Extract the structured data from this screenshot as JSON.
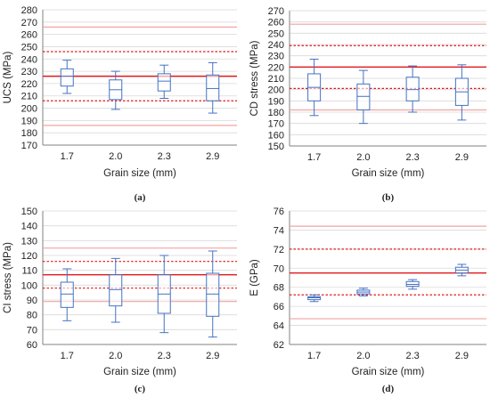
{
  "chart_data": [
    {
      "type": "box",
      "caption": "(a)",
      "ylabel": "UCS (MPa)",
      "xlabel": "Grain size (mm)",
      "ylim": [
        170,
        280
      ],
      "ytick_step": 10,
      "categories": [
        "1.7",
        "2.0",
        "2.3",
        "2.9"
      ],
      "boxes": [
        {
          "min": 212,
          "q1": 218,
          "median": 226,
          "q3": 232,
          "max": 239
        },
        {
          "min": 199,
          "q1": 207,
          "median": 215,
          "q3": 223,
          "max": 230
        },
        {
          "min": 208,
          "q1": 214,
          "median": 222,
          "q3": 228,
          "max": 235
        },
        {
          "min": 196,
          "q1": 206,
          "median": 216,
          "q3": 227,
          "max": 237
        }
      ],
      "reference_lines": {
        "mean": 226,
        "dotted": [
          206,
          246
        ],
        "faint": [
          186,
          266
        ]
      }
    },
    {
      "type": "box",
      "caption": "(b)",
      "ylabel": "CD stress (MPa)",
      "xlabel": "Grain size (mm)",
      "ylim": [
        150,
        270
      ],
      "ytick_step": 10,
      "categories": [
        "1.7",
        "2.0",
        "2.3",
        "2.9"
      ],
      "boxes": [
        {
          "min": 177,
          "q1": 190,
          "median": 202,
          "q3": 214,
          "max": 227
        },
        {
          "min": 170,
          "q1": 182,
          "median": 194,
          "q3": 205,
          "max": 217
        },
        {
          "min": 180,
          "q1": 190,
          "median": 200,
          "q3": 211,
          "max": 221
        },
        {
          "min": 173,
          "q1": 186,
          "median": 198,
          "q3": 210,
          "max": 222
        }
      ],
      "reference_lines": {
        "mean": 220,
        "dotted": [
          201,
          239
        ],
        "faint": [
          182,
          258
        ]
      }
    },
    {
      "type": "box",
      "caption": "(c)",
      "ylabel": "CI stress (MPa)",
      "xlabel": "Grain size (mm)",
      "ylim": [
        60,
        150
      ],
      "ytick_step": 10,
      "categories": [
        "1.7",
        "2.0",
        "2.3",
        "2.9"
      ],
      "boxes": [
        {
          "min": 76,
          "q1": 85,
          "median": 94,
          "q3": 102,
          "max": 111
        },
        {
          "min": 75,
          "q1": 86,
          "median": 97,
          "q3": 107,
          "max": 118
        },
        {
          "min": 68,
          "q1": 81,
          "median": 94,
          "q3": 107,
          "max": 120
        },
        {
          "min": 65,
          "q1": 79,
          "median": 94,
          "q3": 108,
          "max": 123
        }
      ],
      "reference_lines": {
        "mean": 107,
        "dotted": [
          98,
          116
        ],
        "faint": [
          89,
          125
        ]
      }
    },
    {
      "type": "box",
      "caption": "(d)",
      "ylabel": "E (GPa)",
      "xlabel": "Grain size (mm)",
      "ylim": [
        62,
        76
      ],
      "ytick_step": 2,
      "categories": [
        "1.7",
        "2.0",
        "2.3",
        "2.9"
      ],
      "boxes": [
        {
          "min": 66.5,
          "q1": 66.7,
          "median": 66.9,
          "q3": 67.0,
          "max": 67.2
        },
        {
          "min": 67.1,
          "q1": 67.3,
          "median": 67.5,
          "q3": 67.7,
          "max": 67.9
        },
        {
          "min": 67.8,
          "q1": 68.1,
          "median": 68.3,
          "q3": 68.6,
          "max": 68.8
        },
        {
          "min": 69.2,
          "q1": 69.5,
          "median": 69.8,
          "q3": 70.1,
          "max": 70.4
        }
      ],
      "reference_lines": {
        "mean": 69.5,
        "dotted": [
          67.2,
          72.0
        ],
        "faint": [
          64.7,
          74.4
        ]
      }
    }
  ],
  "colors": {
    "box": "#4472c4",
    "mean_line": "#e0191e",
    "dotted_line": "#e0191e",
    "faint_line": "#f2a3a3",
    "grid": "#d9d9d9",
    "axis": "#808080"
  }
}
